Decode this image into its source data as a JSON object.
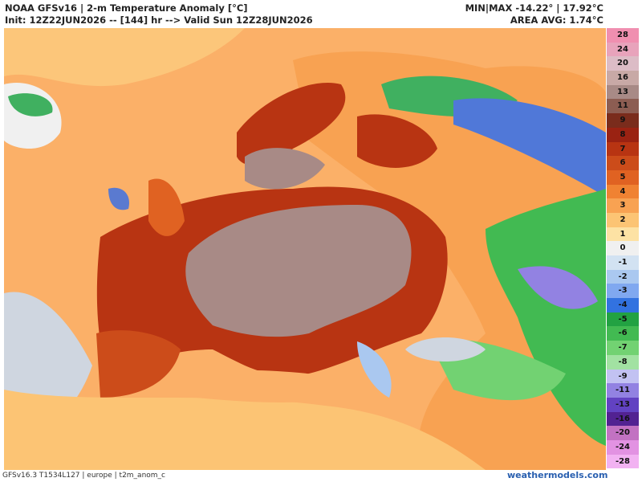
{
  "header": {
    "title": "NOAA GFSv16 | 2-m Temperature Anomaly [°C]",
    "subtitle": "Init: 12Z22JUN2026 -- [144] hr --> Valid Sun 12Z28JUN2026",
    "stats": "MIN|MAX -14.22° | 17.92°C",
    "area_avg": "AREA AVG: 1.74°C"
  },
  "legend": [
    {
      "label": "28",
      "color": "#f08fb0"
    },
    {
      "label": "24",
      "color": "#e8a3bb"
    },
    {
      "label": "20",
      "color": "#dcbcc6"
    },
    {
      "label": "16",
      "color": "#c8a9a6"
    },
    {
      "label": "13",
      "color": "#a88a86"
    },
    {
      "label": "11",
      "color": "#8c5d52"
    },
    {
      "label": "9",
      "color": "#7a2c1c"
    },
    {
      "label": "8",
      "color": "#9a2212"
    },
    {
      "label": "7",
      "color": "#b83412"
    },
    {
      "label": "6",
      "color": "#cc4c1a"
    },
    {
      "label": "5",
      "color": "#e06222"
    },
    {
      "label": "4",
      "color": "#f08232"
    },
    {
      "label": "3",
      "color": "#f8a252"
    },
    {
      "label": "2",
      "color": "#fcc474"
    },
    {
      "label": "1",
      "color": "#fde2a4"
    },
    {
      "label": "0",
      "color": "#f0f0f0"
    },
    {
      "label": "-1",
      "color": "#d2e2f2"
    },
    {
      "label": "-2",
      "color": "#aac8f0"
    },
    {
      "label": "-3",
      "color": "#80a8f0"
    },
    {
      "label": "-4",
      "color": "#3272e0"
    },
    {
      "label": "-5",
      "color": "#22a242"
    },
    {
      "label": "-6",
      "color": "#42ba52"
    },
    {
      "label": "-7",
      "color": "#72d272"
    },
    {
      "label": "-8",
      "color": "#a2e2a2"
    },
    {
      "label": "-9",
      "color": "#c2c2f2"
    },
    {
      "label": "-11",
      "color": "#9282e2"
    },
    {
      "label": "-13",
      "color": "#6242c2"
    },
    {
      "label": "-16",
      "color": "#522292"
    },
    {
      "label": "-20",
      "color": "#c272c2"
    },
    {
      "label": "-24",
      "color": "#e292e2"
    },
    {
      "label": "-28",
      "color": "#f2b2f2"
    }
  ],
  "footer": {
    "info": "GFSv16.3 T1534L127 | europe | t2m_anom_c",
    "site": "weathermodels.com"
  }
}
